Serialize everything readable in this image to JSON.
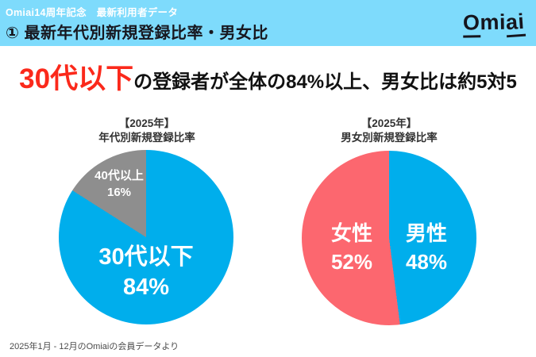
{
  "header": {
    "eyebrow": "Omiai14周年記念　最新利用者データ",
    "title": "① 最新年代別新規登録比率・男女比",
    "logo": {
      "parts": [
        "O",
        "mi",
        "ai"
      ]
    }
  },
  "headline": {
    "highlight": "30代以下",
    "rest": "の登録者が全体の84%以上、男女比は約5対5"
  },
  "chart_data": [
    {
      "type": "pie",
      "title_line1": "【2025年】",
      "title_line2": "年代別新規登録比率",
      "labels": [
        "30代以下",
        "40代以上"
      ],
      "values": [
        84,
        16
      ],
      "value_labels": [
        "84%",
        "16%"
      ],
      "colors": [
        "#00aeec",
        "#8e8e8e"
      ],
      "start_angle_deg": 0,
      "direction": "clockwise",
      "label_color": "#ffffff"
    },
    {
      "type": "pie",
      "title_line1": "【2025年】",
      "title_line2": "男女別新規登録比率",
      "labels": [
        "男性",
        "女性"
      ],
      "values": [
        48,
        52
      ],
      "value_labels": [
        "48%",
        "52%"
      ],
      "colors": [
        "#00aeec",
        "#fc676f"
      ],
      "start_angle_deg": 0,
      "direction": "clockwise",
      "label_color": "#ffffff"
    }
  ],
  "footer": {
    "source": "2025年1月 - 12月のOmiaiの会員データより"
  },
  "colors": {
    "header_bg": "#7edbfc",
    "headline_accent": "#fb291b",
    "pie_blue": "#00aeec",
    "pie_gray": "#8e8e8e",
    "pie_pink": "#fc676f"
  }
}
